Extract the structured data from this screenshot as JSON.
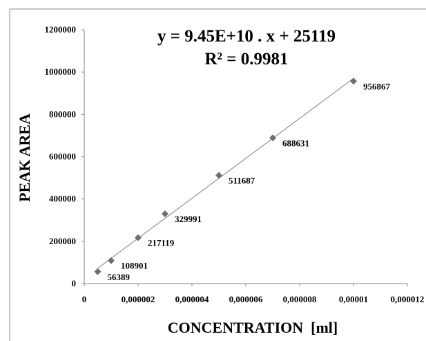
{
  "chart_data": {
    "type": "scatter",
    "xlabel": "CONCENTRATION  [ml]",
    "ylabel": "PEAK AREA",
    "annotations": [
      "y = 9.45E+10 . x + 25119",
      "R² = 0.9981"
    ],
    "xlim": [
      0,
      1.2e-05
    ],
    "ylim": [
      0,
      1200000
    ],
    "x_ticks": [
      0,
      2e-06,
      4e-06,
      6e-06,
      8e-06,
      1e-05,
      1.2e-05
    ],
    "x_tick_labels": [
      "0",
      "0,000002",
      "0,000004",
      "0,000006",
      "0,000008",
      "0,00001",
      "0,000012"
    ],
    "y_ticks": [
      0,
      200000,
      400000,
      600000,
      800000,
      1000000,
      1200000
    ],
    "y_tick_labels": [
      "0",
      "200000",
      "400000",
      "600000",
      "800000",
      "1000000",
      "1200000"
    ],
    "grid": false,
    "legend": "none",
    "points": [
      {
        "x": 5e-07,
        "y": 56389,
        "label": "56389"
      },
      {
        "x": 1e-06,
        "y": 108901,
        "label": "108901"
      },
      {
        "x": 2e-06,
        "y": 217119,
        "label": "217119"
      },
      {
        "x": 3e-06,
        "y": 329991,
        "label": "329991"
      },
      {
        "x": 5e-06,
        "y": 511687,
        "label": "511687"
      },
      {
        "x": 7e-06,
        "y": 688631,
        "label": "688631"
      },
      {
        "x": 1e-05,
        "y": 956867,
        "label": "956867"
      }
    ],
    "trendline": {
      "slope": 94500000000,
      "intercept": 25119
    },
    "colors": {
      "marker": "#6e6e6e",
      "trendline": "#7f7f7f",
      "axis": "#868686"
    }
  }
}
